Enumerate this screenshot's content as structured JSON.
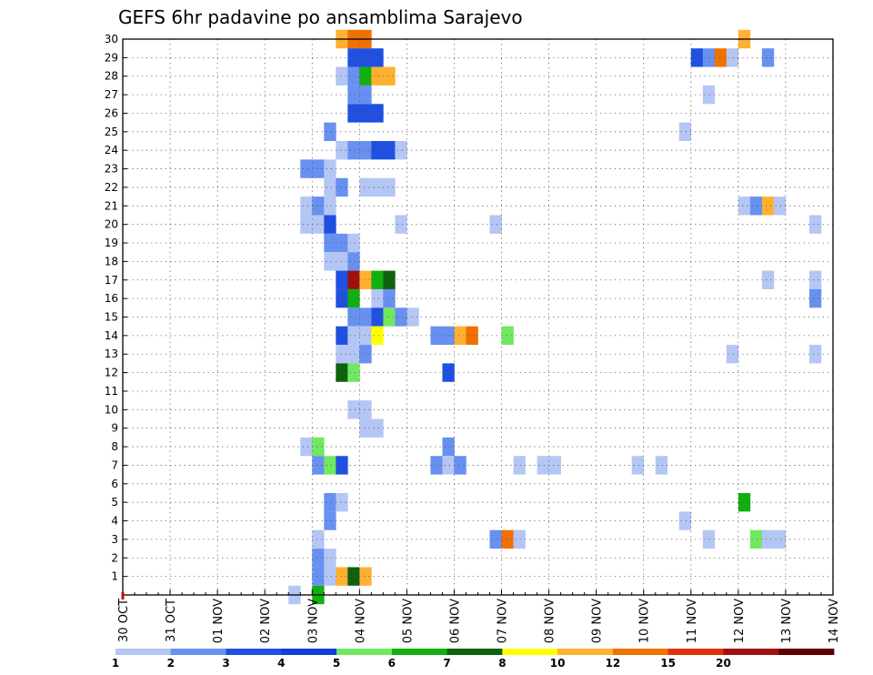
{
  "chart_data": {
    "type": "heatmap",
    "title": "GEFS 6hr padavine po ansamblima Sarajevo",
    "xlabel": "",
    "ylabel": "",
    "time_step_hours": 6,
    "x_ticks": [
      "30 OCT",
      "31 OCT",
      "01 NOV",
      "02 NOV",
      "03 NOV",
      "04 NOV",
      "05 NOV",
      "06 NOV",
      "07 NOV",
      "08 NOV",
      "09 NOV",
      "10 NOV",
      "11 NOV",
      "12 NOV",
      "13 NOV",
      "14 NOV"
    ],
    "y_ticks": [
      "1",
      "2",
      "3",
      "4",
      "5",
      "6",
      "7",
      "8",
      "9",
      "10",
      "11",
      "12",
      "13",
      "14",
      "15",
      "16",
      "17",
      "18",
      "19",
      "20",
      "21",
      "22",
      "23",
      "24",
      "25",
      "26",
      "27",
      "28",
      "29",
      "30"
    ],
    "xlim_days": [
      0,
      15
    ],
    "ylim_members": [
      0,
      30
    ],
    "grid": true,
    "colorbar": {
      "labels": [
        "1",
        "2",
        "3",
        "4",
        "5",
        "6",
        "7",
        "8",
        "10",
        "12",
        "15",
        "20"
      ],
      "colors": [
        "#b4c6f4",
        "#6890f0",
        "#2050e0",
        "#1040d8",
        "#70e860",
        "#10b010",
        "#106010",
        "#ffff00",
        "#ffb030",
        "#f07000",
        "#e03010",
        "#a01010",
        "#600000"
      ]
    },
    "cells_note": "cells: [start_time_in_days_from_30_OCT_00z, ensemble_member, color_class_index]",
    "cells": [
      [
        3.5,
        0,
        0
      ],
      [
        4.0,
        0,
        5
      ],
      [
        4.5,
        30,
        8
      ],
      [
        4.75,
        30,
        9
      ],
      [
        5.0,
        30,
        9
      ],
      [
        4.75,
        29,
        2
      ],
      [
        5.0,
        29,
        2
      ],
      [
        5.25,
        29,
        2
      ],
      [
        4.5,
        28,
        0
      ],
      [
        4.75,
        28,
        1
      ],
      [
        5.0,
        28,
        5
      ],
      [
        5.25,
        28,
        8
      ],
      [
        5.5,
        28,
        8
      ],
      [
        4.75,
        27,
        1
      ],
      [
        5.0,
        27,
        1
      ],
      [
        4.75,
        26,
        2
      ],
      [
        5.0,
        26,
        2
      ],
      [
        5.25,
        26,
        2
      ],
      [
        4.25,
        25,
        1
      ],
      [
        4.5,
        24,
        0
      ],
      [
        4.75,
        24,
        1
      ],
      [
        5.0,
        24,
        1
      ],
      [
        5.25,
        24,
        2
      ],
      [
        5.5,
        24,
        2
      ],
      [
        5.75,
        24,
        0
      ],
      [
        3.75,
        23,
        1
      ],
      [
        4.0,
        23,
        1
      ],
      [
        4.25,
        23,
        0
      ],
      [
        4.25,
        22,
        0
      ],
      [
        4.5,
        22,
        1
      ],
      [
        5.0,
        22,
        0
      ],
      [
        5.25,
        22,
        0
      ],
      [
        5.5,
        22,
        0
      ],
      [
        3.75,
        21,
        0
      ],
      [
        4.0,
        21,
        1
      ],
      [
        4.25,
        21,
        0
      ],
      [
        3.75,
        20,
        0
      ],
      [
        4.0,
        20,
        0
      ],
      [
        4.25,
        20,
        2
      ],
      [
        5.75,
        20,
        0
      ],
      [
        7.75,
        20,
        0
      ],
      [
        4.25,
        19,
        1
      ],
      [
        4.5,
        19,
        1
      ],
      [
        4.75,
        19,
        0
      ],
      [
        4.25,
        18,
        0
      ],
      [
        4.5,
        18,
        0
      ],
      [
        4.75,
        18,
        1
      ],
      [
        4.5,
        17,
        2
      ],
      [
        4.75,
        17,
        11
      ],
      [
        5.0,
        17,
        8
      ],
      [
        5.25,
        17,
        5
      ],
      [
        5.5,
        17,
        6
      ],
      [
        4.5,
        16,
        2
      ],
      [
        4.75,
        16,
        5
      ],
      [
        5.25,
        16,
        0
      ],
      [
        5.5,
        16,
        1
      ],
      [
        4.75,
        15,
        1
      ],
      [
        5.0,
        15,
        1
      ],
      [
        5.25,
        15,
        2
      ],
      [
        5.5,
        15,
        4
      ],
      [
        5.75,
        15,
        1
      ],
      [
        6.0,
        15,
        0
      ],
      [
        4.5,
        14,
        2
      ],
      [
        4.75,
        14,
        0
      ],
      [
        5.0,
        14,
        0
      ],
      [
        5.25,
        14,
        7
      ],
      [
        6.5,
        14,
        1
      ],
      [
        6.75,
        14,
        1
      ],
      [
        7.0,
        14,
        8
      ],
      [
        7.25,
        14,
        9
      ],
      [
        8.0,
        14,
        4
      ],
      [
        4.5,
        13,
        0
      ],
      [
        4.75,
        13,
        0
      ],
      [
        5.0,
        13,
        1
      ],
      [
        4.5,
        12,
        6
      ],
      [
        4.75,
        12,
        4
      ],
      [
        6.75,
        12,
        2
      ],
      [
        4.75,
        10,
        0
      ],
      [
        5.0,
        10,
        0
      ],
      [
        5.0,
        9,
        0
      ],
      [
        5.25,
        9,
        0
      ],
      [
        3.75,
        8,
        0
      ],
      [
        4.0,
        8,
        4
      ],
      [
        6.75,
        8,
        1
      ],
      [
        4.0,
        7,
        1
      ],
      [
        4.25,
        7,
        4
      ],
      [
        4.5,
        7,
        2
      ],
      [
        6.5,
        7,
        1
      ],
      [
        6.75,
        7,
        0
      ],
      [
        7.0,
        7,
        1
      ],
      [
        8.25,
        7,
        0
      ],
      [
        8.75,
        7,
        0
      ],
      [
        9.0,
        7,
        0
      ],
      [
        10.75,
        7,
        0
      ],
      [
        11.25,
        7,
        0
      ],
      [
        4.25,
        5,
        1
      ],
      [
        4.5,
        5,
        0
      ],
      [
        4.25,
        4,
        1
      ],
      [
        4.0,
        3,
        0
      ],
      [
        7.75,
        3,
        1
      ],
      [
        8.0,
        3,
        9
      ],
      [
        8.25,
        3,
        0
      ],
      [
        4.0,
        2,
        1
      ],
      [
        4.25,
        2,
        0
      ],
      [
        4.0,
        1,
        1
      ],
      [
        4.25,
        1,
        0
      ],
      [
        4.5,
        1,
        8
      ],
      [
        4.75,
        1,
        6
      ],
      [
        5.0,
        1,
        8
      ],
      [
        12.0,
        29,
        2
      ],
      [
        12.25,
        29,
        1
      ],
      [
        12.5,
        29,
        9
      ],
      [
        12.75,
        29,
        0
      ],
      [
        13.5,
        29,
        1
      ],
      [
        13.0,
        30,
        8
      ],
      [
        12.25,
        27,
        0
      ],
      [
        11.75,
        25,
        0
      ],
      [
        13.0,
        21,
        0
      ],
      [
        13.25,
        21,
        1
      ],
      [
        13.5,
        21,
        8
      ],
      [
        13.75,
        21,
        0
      ],
      [
        14.5,
        20,
        0
      ],
      [
        13.5,
        17,
        0
      ],
      [
        14.5,
        17,
        0
      ],
      [
        14.5,
        16,
        1
      ],
      [
        12.75,
        13,
        0
      ],
      [
        14.5,
        13,
        0
      ],
      [
        11.75,
        4,
        0
      ],
      [
        12.25,
        3,
        0
      ],
      [
        13.25,
        3,
        4
      ],
      [
        13.5,
        3,
        0
      ],
      [
        13.75,
        3,
        0
      ],
      [
        13.0,
        5,
        5
      ]
    ]
  }
}
